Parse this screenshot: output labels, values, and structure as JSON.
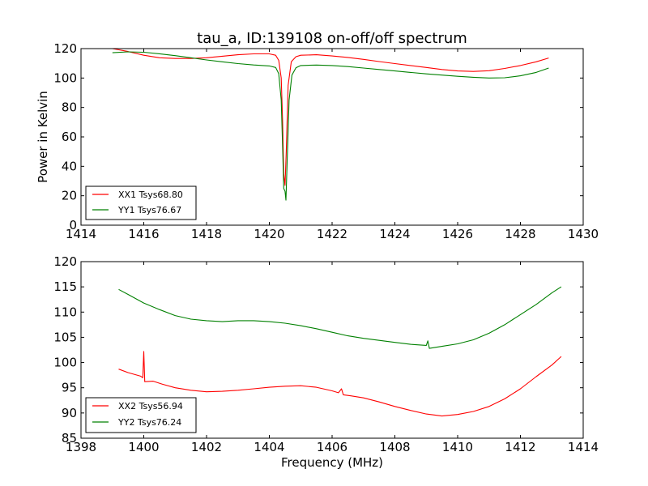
{
  "chart_data": [
    {
      "type": "line",
      "title": "tau_a, ID:139108 on-off/off spectrum",
      "xlabel": "",
      "ylabel": "Power in Kelvin",
      "xlim": [
        1414,
        1430
      ],
      "ylim": [
        0,
        120
      ],
      "xticks": [
        "1414",
        "1416",
        "1418",
        "1420",
        "1422",
        "1424",
        "1426",
        "1428",
        "1430"
      ],
      "yticks": [
        "0",
        "20",
        "40",
        "60",
        "80",
        "100",
        "120"
      ],
      "legend_position": "lower-left",
      "series": [
        {
          "name": "XX1 Tsys68.80",
          "color": "#ff0000",
          "points": [
            [
              1415.0,
              120.0
            ],
            [
              1415.5,
              118.0
            ],
            [
              1416.0,
              115.5
            ],
            [
              1416.5,
              113.8
            ],
            [
              1417.0,
              113.3
            ],
            [
              1417.5,
              113.3
            ],
            [
              1418.0,
              113.8
            ],
            [
              1418.5,
              114.8
            ],
            [
              1419.0,
              115.8
            ],
            [
              1419.5,
              116.4
            ],
            [
              1420.0,
              116.4
            ],
            [
              1420.2,
              115.5
            ],
            [
              1420.3,
              112.0
            ],
            [
              1420.38,
              100.0
            ],
            [
              1420.42,
              72.0
            ],
            [
              1420.46,
              35.0
            ],
            [
              1420.5,
              27.0
            ],
            [
              1420.54,
              50.0
            ],
            [
              1420.6,
              95.0
            ],
            [
              1420.7,
              111.0
            ],
            [
              1420.85,
              114.5
            ],
            [
              1421.0,
              115.5
            ],
            [
              1421.5,
              115.8
            ],
            [
              1422.0,
              115.0
            ],
            [
              1422.5,
              114.0
            ],
            [
              1423.0,
              112.7
            ],
            [
              1423.5,
              111.2
            ],
            [
              1424.0,
              109.8
            ],
            [
              1424.5,
              108.5
            ],
            [
              1425.0,
              107.2
            ],
            [
              1425.5,
              105.8
            ],
            [
              1426.0,
              104.8
            ],
            [
              1426.5,
              104.5
            ],
            [
              1427.0,
              105.0
            ],
            [
              1427.5,
              106.5
            ],
            [
              1428.0,
              108.5
            ],
            [
              1428.5,
              111.0
            ],
            [
              1428.9,
              113.6
            ]
          ]
        },
        {
          "name": "YY1 Tsys76.67",
          "color": "#008000",
          "points": [
            [
              1415.0,
              117.2
            ],
            [
              1415.5,
              117.8
            ],
            [
              1416.0,
              117.5
            ],
            [
              1416.5,
              116.5
            ],
            [
              1417.0,
              115.2
            ],
            [
              1417.5,
              113.8
            ],
            [
              1418.0,
              112.3
            ],
            [
              1418.5,
              111.0
            ],
            [
              1419.0,
              109.8
            ],
            [
              1419.5,
              108.9
            ],
            [
              1420.0,
              108.2
            ],
            [
              1420.2,
              107.2
            ],
            [
              1420.3,
              103.0
            ],
            [
              1420.38,
              85.0
            ],
            [
              1420.42,
              55.0
            ],
            [
              1420.46,
              25.0
            ],
            [
              1420.5,
              23.0
            ],
            [
              1420.53,
              17.0
            ],
            [
              1420.57,
              45.0
            ],
            [
              1420.63,
              85.0
            ],
            [
              1420.72,
              102.0
            ],
            [
              1420.85,
              107.0
            ],
            [
              1421.0,
              108.5
            ],
            [
              1421.5,
              108.8
            ],
            [
              1422.0,
              108.5
            ],
            [
              1422.5,
              107.8
            ],
            [
              1423.0,
              106.8
            ],
            [
              1423.5,
              105.8
            ],
            [
              1424.0,
              104.8
            ],
            [
              1424.5,
              103.8
            ],
            [
              1425.0,
              102.8
            ],
            [
              1425.5,
              102.0
            ],
            [
              1426.0,
              101.2
            ],
            [
              1426.5,
              100.5
            ],
            [
              1427.0,
              100.0
            ],
            [
              1427.5,
              100.2
            ],
            [
              1428.0,
              101.5
            ],
            [
              1428.5,
              103.8
            ],
            [
              1428.9,
              106.8
            ]
          ]
        }
      ]
    },
    {
      "type": "line",
      "title": "",
      "xlabel": "Frequency (MHz)",
      "ylabel": "",
      "xlim": [
        1398,
        1414
      ],
      "ylim": [
        85,
        120
      ],
      "xticks": [
        "1398",
        "1400",
        "1402",
        "1404",
        "1406",
        "1408",
        "1410",
        "1412",
        "1414"
      ],
      "yticks": [
        "85",
        "90",
        "95",
        "100",
        "105",
        "110",
        "115",
        "120"
      ],
      "legend_position": "lower-left",
      "series": [
        {
          "name": "XX2 Tsys56.94",
          "color": "#ff0000",
          "points": [
            [
              1399.2,
              98.7
            ],
            [
              1399.5,
              98.0
            ],
            [
              1399.9,
              97.3
            ],
            [
              1399.97,
              97.0
            ],
            [
              1400.0,
              102.2
            ],
            [
              1400.03,
              96.2
            ],
            [
              1400.3,
              96.3
            ],
            [
              1400.6,
              95.7
            ],
            [
              1401.0,
              95.0
            ],
            [
              1401.5,
              94.5
            ],
            [
              1402.0,
              94.2
            ],
            [
              1402.5,
              94.3
            ],
            [
              1403.0,
              94.5
            ],
            [
              1403.5,
              94.8
            ],
            [
              1404.0,
              95.1
            ],
            [
              1404.5,
              95.3
            ],
            [
              1405.0,
              95.4
            ],
            [
              1405.5,
              95.1
            ],
            [
              1406.0,
              94.4
            ],
            [
              1406.2,
              94.0
            ],
            [
              1406.3,
              94.8
            ],
            [
              1406.36,
              93.6
            ],
            [
              1406.6,
              93.4
            ],
            [
              1407.0,
              93.0
            ],
            [
              1407.5,
              92.2
            ],
            [
              1408.0,
              91.3
            ],
            [
              1408.5,
              90.5
            ],
            [
              1409.0,
              89.8
            ],
            [
              1409.5,
              89.4
            ],
            [
              1410.0,
              89.7
            ],
            [
              1410.5,
              90.3
            ],
            [
              1411.0,
              91.3
            ],
            [
              1411.5,
              92.8
            ],
            [
              1412.0,
              94.8
            ],
            [
              1412.5,
              97.2
            ],
            [
              1413.0,
              99.5
            ],
            [
              1413.3,
              101.2
            ]
          ]
        },
        {
          "name": "YY2 Tsys76.24",
          "color": "#008000",
          "points": [
            [
              1399.2,
              114.5
            ],
            [
              1399.5,
              113.5
            ],
            [
              1400.0,
              111.8
            ],
            [
              1400.5,
              110.5
            ],
            [
              1401.0,
              109.3
            ],
            [
              1401.5,
              108.6
            ],
            [
              1402.0,
              108.3
            ],
            [
              1402.5,
              108.1
            ],
            [
              1403.0,
              108.3
            ],
            [
              1403.5,
              108.3
            ],
            [
              1404.0,
              108.1
            ],
            [
              1404.5,
              107.8
            ],
            [
              1405.0,
              107.3
            ],
            [
              1405.5,
              106.7
            ],
            [
              1406.0,
              106.0
            ],
            [
              1406.5,
              105.3
            ],
            [
              1407.0,
              104.8
            ],
            [
              1407.5,
              104.4
            ],
            [
              1408.0,
              104.0
            ],
            [
              1408.5,
              103.6
            ],
            [
              1409.0,
              103.4
            ],
            [
              1409.05,
              104.3
            ],
            [
              1409.1,
              102.8
            ],
            [
              1409.5,
              103.2
            ],
            [
              1410.0,
              103.7
            ],
            [
              1410.5,
              104.5
            ],
            [
              1411.0,
              105.8
            ],
            [
              1411.5,
              107.5
            ],
            [
              1412.0,
              109.5
            ],
            [
              1412.5,
              111.5
            ],
            [
              1413.0,
              113.8
            ],
            [
              1413.3,
              115.0
            ]
          ]
        }
      ]
    }
  ]
}
